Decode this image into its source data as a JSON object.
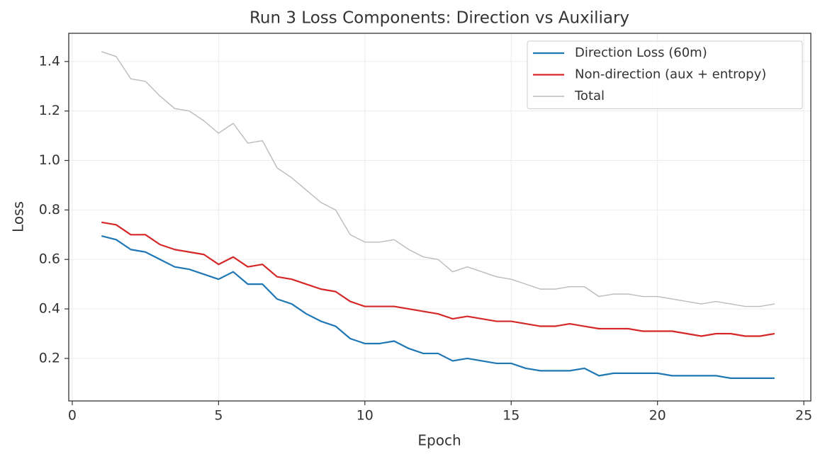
{
  "chart_data": {
    "type": "line",
    "title": "Run 3 Loss Components: Direction vs Auxiliary",
    "x_label": "Epoch",
    "y_label": "Loss",
    "x": [
      1,
      1.5,
      2,
      2.5,
      3,
      3.5,
      4,
      4.5,
      5,
      5.5,
      6,
      6.5,
      7,
      7.5,
      8,
      8.5,
      9,
      9.5,
      10,
      10.5,
      11,
      11.5,
      12,
      12.5,
      13,
      13.5,
      14,
      14.5,
      15,
      15.5,
      16,
      16.5,
      17,
      17.5,
      18,
      18.5,
      19,
      19.5,
      20,
      20.5,
      21,
      21.5,
      22,
      22.5,
      23,
      23.5,
      24
    ],
    "series": [
      {
        "name": "Direction Loss (60m)",
        "color": "#1f77b4",
        "linewidth": 2.2,
        "values": [
          0.695,
          0.68,
          0.64,
          0.63,
          0.6,
          0.57,
          0.56,
          0.54,
          0.52,
          0.55,
          0.5,
          0.5,
          0.44,
          0.42,
          0.38,
          0.35,
          0.33,
          0.28,
          0.26,
          0.26,
          0.27,
          0.24,
          0.22,
          0.22,
          0.19,
          0.2,
          0.19,
          0.18,
          0.18,
          0.16,
          0.15,
          0.15,
          0.15,
          0.16,
          0.13,
          0.14,
          0.14,
          0.14,
          0.14,
          0.13,
          0.13,
          0.13,
          0.13,
          0.12,
          0.12,
          0.12,
          0.12
        ]
      },
      {
        "name": "Non-direction (aux + entropy)",
        "color": "#d62728",
        "linewidth": 2.2,
        "values": [
          0.75,
          0.74,
          0.7,
          0.7,
          0.66,
          0.64,
          0.63,
          0.62,
          0.58,
          0.61,
          0.57,
          0.58,
          0.53,
          0.52,
          0.5,
          0.48,
          0.47,
          0.43,
          0.41,
          0.41,
          0.41,
          0.4,
          0.39,
          0.38,
          0.36,
          0.37,
          0.36,
          0.35,
          0.35,
          0.34,
          0.33,
          0.33,
          0.34,
          0.33,
          0.32,
          0.32,
          0.32,
          0.31,
          0.31,
          0.31,
          0.3,
          0.29,
          0.3,
          0.3,
          0.29,
          0.29,
          0.3
        ]
      },
      {
        "name": "Total",
        "color": "#bbbbbb",
        "linewidth": 1.4,
        "values": [
          1.44,
          1.42,
          1.33,
          1.32,
          1.26,
          1.21,
          1.2,
          1.16,
          1.11,
          1.15,
          1.07,
          1.08,
          0.97,
          0.93,
          0.88,
          0.83,
          0.8,
          0.7,
          0.67,
          0.67,
          0.68,
          0.64,
          0.61,
          0.6,
          0.55,
          0.57,
          0.55,
          0.53,
          0.52,
          0.5,
          0.48,
          0.48,
          0.49,
          0.49,
          0.45,
          0.46,
          0.46,
          0.45,
          0.45,
          0.44,
          0.43,
          0.42,
          0.43,
          0.42,
          0.41,
          0.41,
          0.42
        ]
      }
    ],
    "xlim": [
      -0.12,
      25.24
    ],
    "ylim": [
      0.028,
      1.514
    ],
    "xticks": [
      0,
      5,
      10,
      15,
      20,
      25
    ],
    "yticks": [
      0.2,
      0.4,
      0.6,
      0.8,
      {
        "value": 1,
        "label": "1.0"
      },
      1.2,
      1.4
    ],
    "grid": true,
    "legend": "upper right"
  }
}
